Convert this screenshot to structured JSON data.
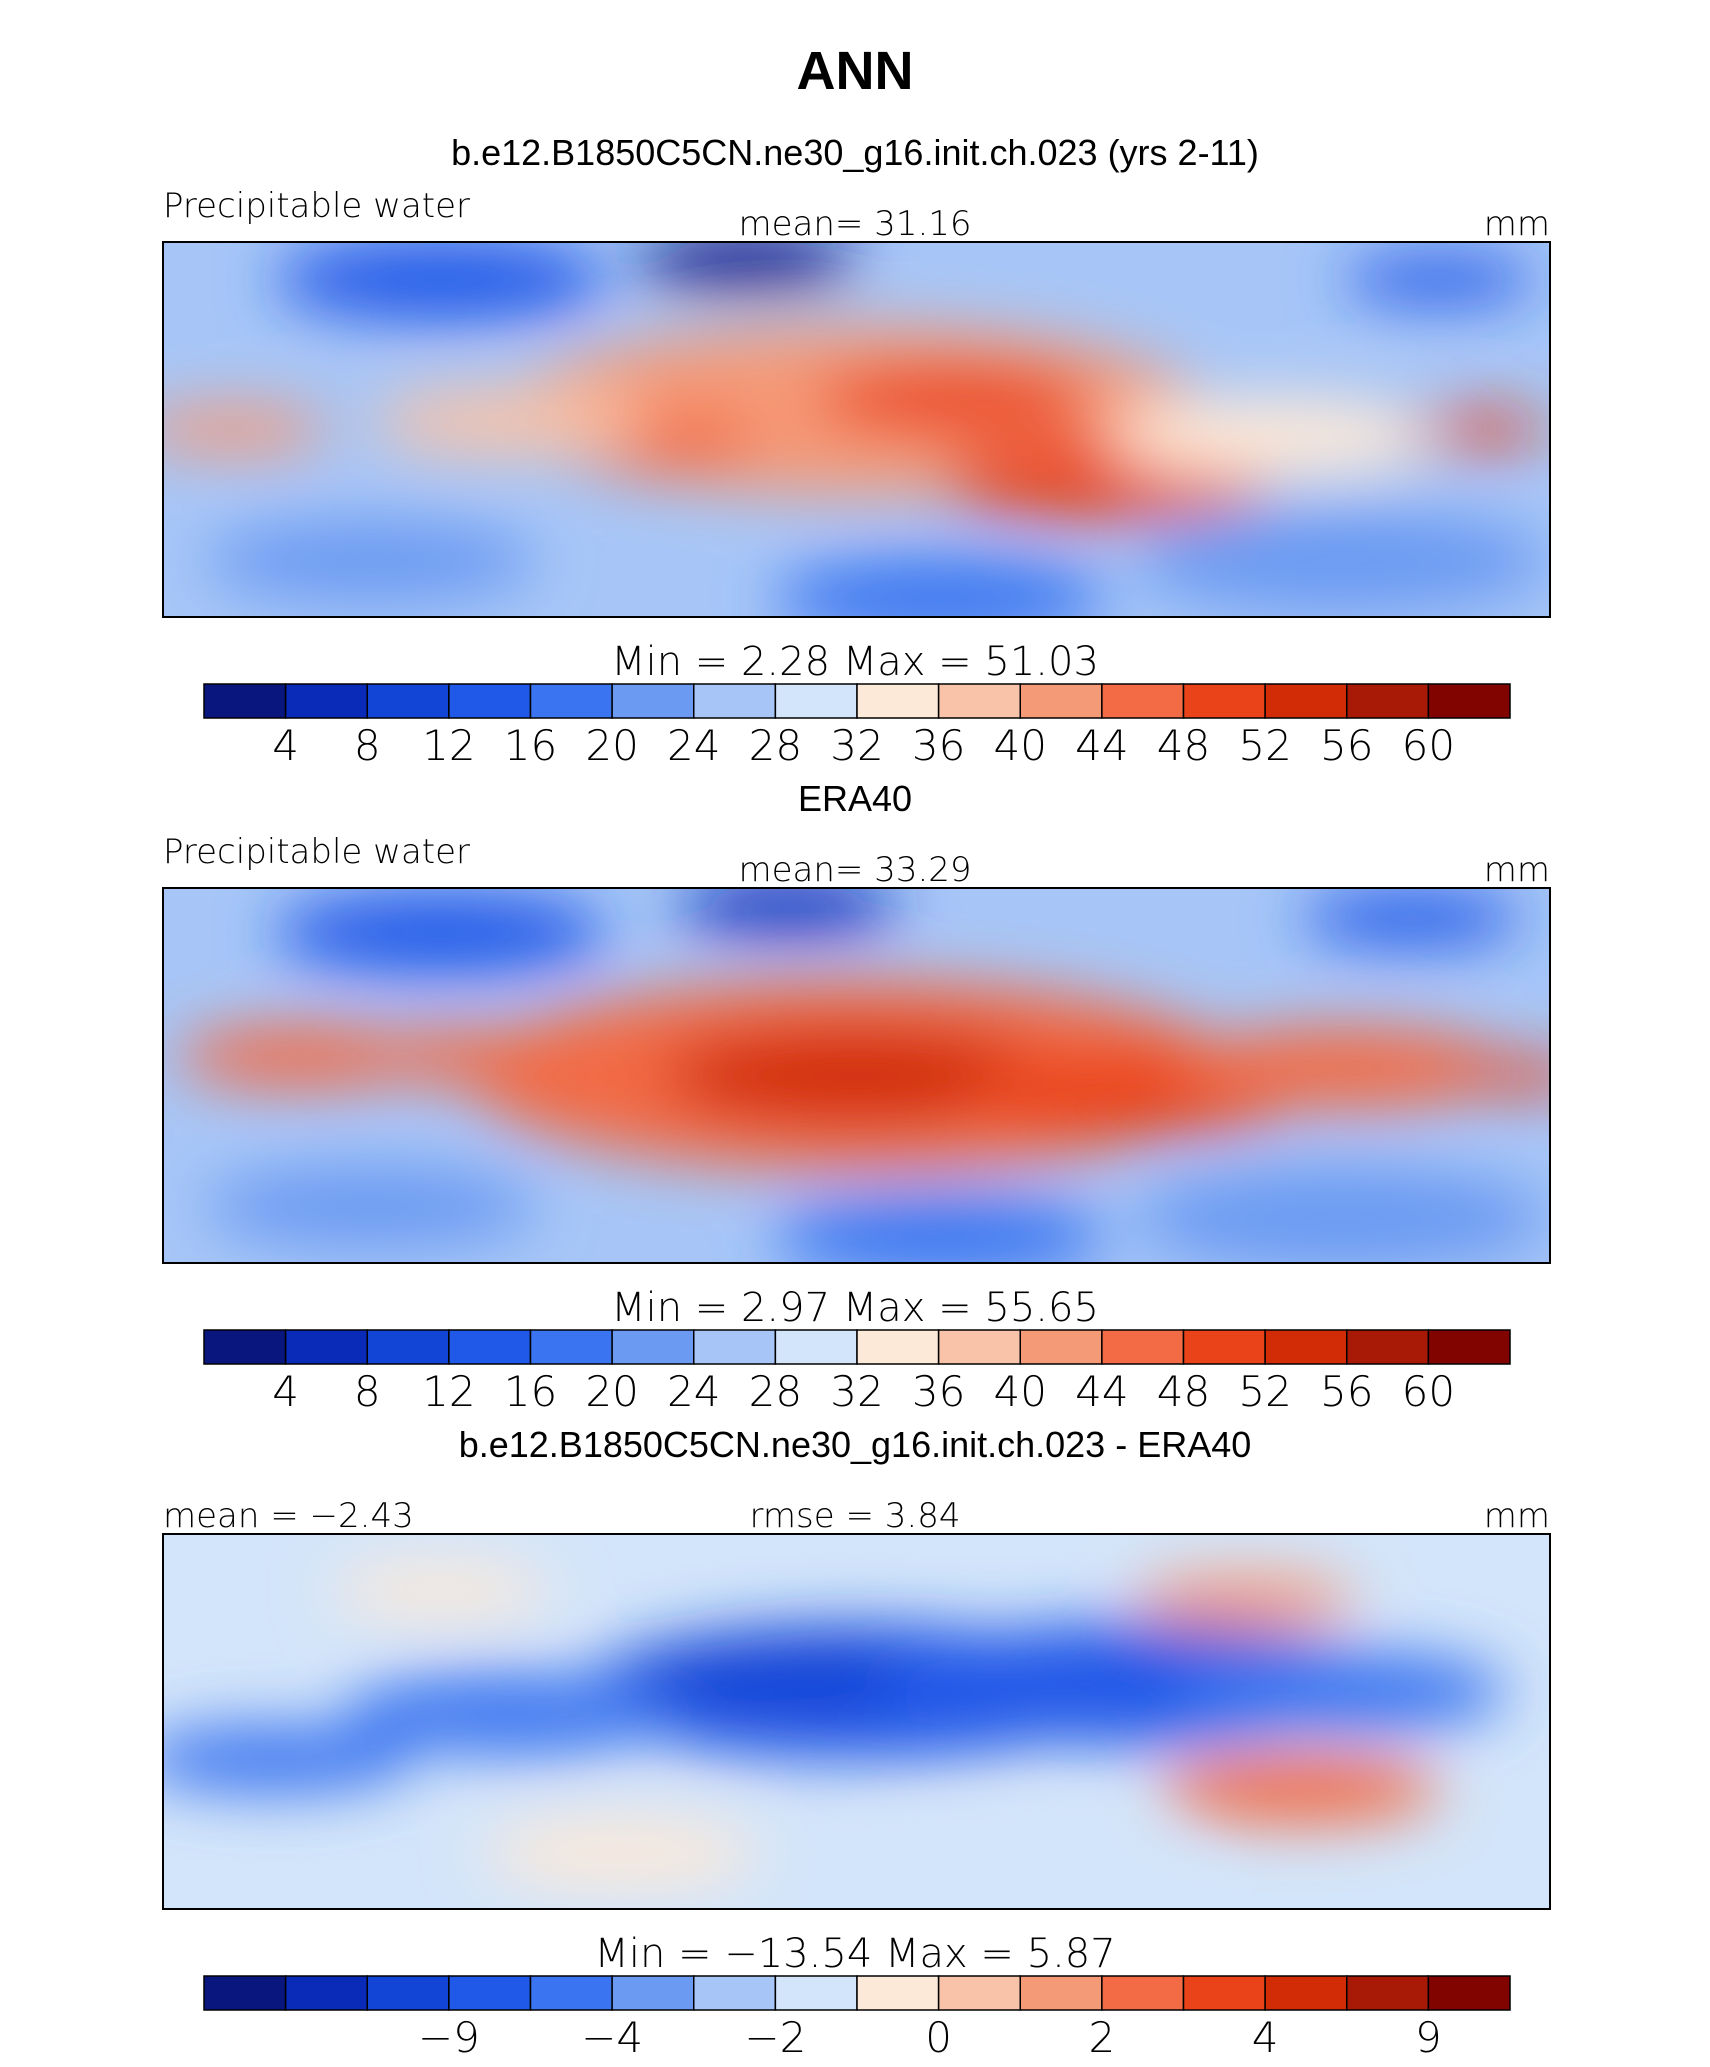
{
  "figure": {
    "title": "ANN"
  },
  "chart_data": [
    {
      "type": "heatmap",
      "title": "b.e12.B1850C5CN.ne30_g16.init.ch.023 (yrs 2-11)",
      "variable": "Precipitable water",
      "units": "mm",
      "mean_label": "mean=",
      "mean": "31.16",
      "min_label": "Min =",
      "min": "2.28",
      "max_label": "Max =",
      "max": "51.03",
      "colorbar": {
        "colors": [
          "#08167e",
          "#0a2ab8",
          "#1245d6",
          "#2058e8",
          "#3b74f0",
          "#6a9af2",
          "#a7c6f7",
          "#d3e5fa",
          "#fde9d8",
          "#f8c3a8",
          "#f59a77",
          "#f26b45",
          "#ea4219",
          "#d22c06",
          "#a81a05",
          "#820400"
        ],
        "labels": [
          "4",
          "8",
          "12",
          "16",
          "20",
          "24",
          "28",
          "32",
          "36",
          "40",
          "44",
          "48",
          "52",
          "56",
          "60"
        ]
      }
    },
    {
      "type": "heatmap",
      "title": "ERA40",
      "variable": "Precipitable water",
      "units": "mm",
      "mean_label": "mean=",
      "mean": "33.29",
      "min_label": "Min =",
      "min": "2.97",
      "max_label": "Max =",
      "max": "55.65",
      "colorbar": {
        "colors": [
          "#08167e",
          "#0a2ab8",
          "#1245d6",
          "#2058e8",
          "#3b74f0",
          "#6a9af2",
          "#a7c6f7",
          "#d3e5fa",
          "#fde9d8",
          "#f8c3a8",
          "#f59a77",
          "#f26b45",
          "#ea4219",
          "#d22c06",
          "#a81a05",
          "#820400"
        ],
        "labels": [
          "4",
          "8",
          "12",
          "16",
          "20",
          "24",
          "28",
          "32",
          "36",
          "40",
          "44",
          "48",
          "52",
          "56",
          "60"
        ]
      }
    },
    {
      "type": "heatmap",
      "title": "b.e12.B1850C5CN.ne30_g16.init.ch.023 - ERA40",
      "units": "mm",
      "mean_label": "mean =",
      "mean": "−2.43",
      "rmse_label": "rmse =",
      "rmse": "3.84",
      "min_label": "Min =",
      "min": "−13.54",
      "max_label": "Max =",
      "max": "5.87",
      "colorbar": {
        "colors": [
          "#08167e",
          "#0a2ab8",
          "#1245d6",
          "#2058e8",
          "#3b74f0",
          "#6a9af2",
          "#a7c6f7",
          "#d3e5fa",
          "#fde9d8",
          "#f8c3a8",
          "#f59a77",
          "#f26b45",
          "#ea4219",
          "#d22c06",
          "#a81a05",
          "#820400"
        ],
        "labels": [
          "",
          "",
          "−9",
          "",
          "−4",
          "",
          "−2",
          "",
          "0",
          "",
          "2",
          "",
          "4",
          "",
          "9",
          ""
        ]
      }
    }
  ]
}
